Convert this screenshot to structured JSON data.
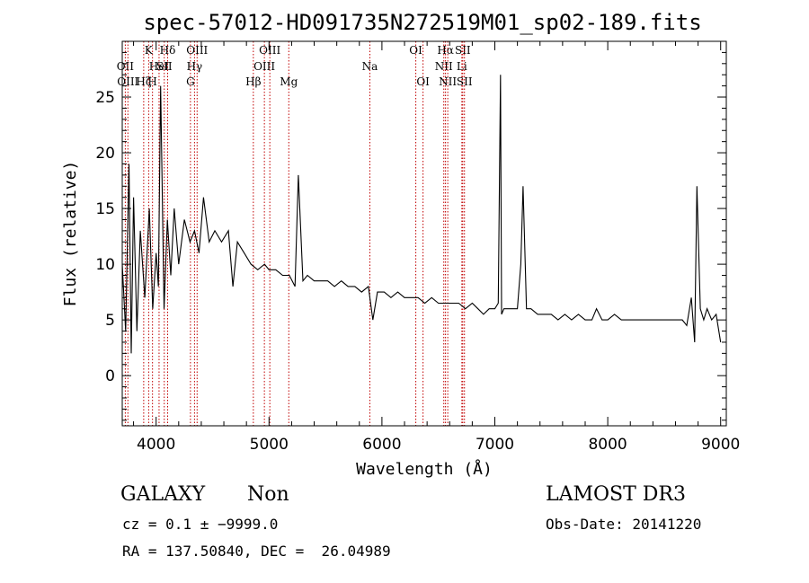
{
  "chart_data": {
    "type": "line",
    "title": "spec-57012-HD091735N272519M01_sp02-189.fits",
    "xlabel": "Wavelength (Å)",
    "ylabel": "Flux (relative)",
    "xlim": [
      3700,
      9050
    ],
    "ylim": [
      -4.5,
      30
    ],
    "xticks": [
      4000,
      5000,
      6000,
      7000,
      8000,
      9000
    ],
    "yticks": [
      0,
      5,
      10,
      15,
      20,
      25
    ],
    "grid": false,
    "series": [
      {
        "name": "flux",
        "x": [
          3700,
          3730,
          3760,
          3780,
          3800,
          3830,
          3860,
          3900,
          3940,
          3970,
          4000,
          4020,
          4040,
          4070,
          4100,
          4130,
          4160,
          4200,
          4250,
          4300,
          4340,
          4380,
          4420,
          4470,
          4520,
          4580,
          4640,
          4680,
          4720,
          4780,
          4840,
          4900,
          4960,
          5000,
          5060,
          5120,
          5180,
          5230,
          5260,
          5300,
          5340,
          5400,
          5460,
          5520,
          5580,
          5640,
          5700,
          5760,
          5820,
          5880,
          5920,
          5960,
          6020,
          6080,
          6140,
          6200,
          6260,
          6320,
          6380,
          6440,
          6500,
          6560,
          6620,
          6680,
          6740,
          6800,
          6850,
          6900,
          6950,
          7000,
          7030,
          7050,
          7060,
          7080,
          7100,
          7150,
          7200,
          7230,
          7250,
          7280,
          7320,
          7380,
          7440,
          7500,
          7560,
          7620,
          7680,
          7740,
          7800,
          7860,
          7900,
          7950,
          8000,
          8060,
          8120,
          8180,
          8240,
          8300,
          8360,
          8420,
          8480,
          8540,
          8600,
          8660,
          8700,
          8740,
          8770,
          8790,
          8820,
          8850,
          8880,
          8920,
          8960,
          9000
        ],
        "y": [
          10,
          4,
          19,
          2,
          16,
          4,
          13,
          7,
          15,
          6,
          11,
          8,
          26,
          6,
          14,
          9,
          15,
          10,
          14,
          12,
          13,
          11,
          16,
          12,
          13,
          12,
          13,
          8,
          12,
          11,
          10,
          9.5,
          10,
          9.5,
          9.5,
          9,
          9,
          8,
          18,
          8.5,
          9,
          8.5,
          8.5,
          8.5,
          8,
          8.5,
          8,
          8,
          7.5,
          8,
          5,
          7.5,
          7.5,
          7,
          7.5,
          7,
          7,
          7,
          6.5,
          7,
          6.5,
          6.5,
          6.5,
          6.5,
          6,
          6.5,
          6,
          5.5,
          6,
          6,
          6.5,
          27,
          5.5,
          6,
          6,
          6,
          6,
          10,
          17,
          6,
          6,
          5.5,
          5.5,
          5.5,
          5,
          5.5,
          5,
          5.5,
          5,
          5,
          6,
          5,
          5,
          5.5,
          5,
          5,
          5,
          5,
          5,
          5,
          5,
          5,
          5,
          5,
          4.5,
          7,
          3,
          17,
          6,
          5,
          6,
          5,
          5.5,
          3
        ]
      }
    ],
    "lines": [
      {
        "wl": 3727,
        "label": "OII",
        "row": 1
      },
      {
        "wl": 3750,
        "label": "OIII",
        "row": 2
      },
      {
        "wl": 3890,
        "label": "Hζ",
        "row": 2
      },
      {
        "wl": 3934,
        "label": "K",
        "row": 0
      },
      {
        "wl": 3968,
        "label": "H",
        "row": 2
      },
      {
        "wl": 4026,
        "label": "HeI",
        "row": 1
      },
      {
        "wl": 4072,
        "label": "SII",
        "row": 1
      },
      {
        "wl": 4102,
        "label": "Hδ",
        "row": 0
      },
      {
        "wl": 4304,
        "label": "G",
        "row": 2
      },
      {
        "wl": 4340,
        "label": "Hγ",
        "row": 1
      },
      {
        "wl": 4363,
        "label": "OIII",
        "row": 0
      },
      {
        "wl": 4861,
        "label": "Hβ",
        "row": 2
      },
      {
        "wl": 4959,
        "label": "OIII",
        "row": 1
      },
      {
        "wl": 5007,
        "label": "OIII",
        "row": 0
      },
      {
        "wl": 5175,
        "label": "Mg",
        "row": 2
      },
      {
        "wl": 5893,
        "label": "Na",
        "row": 1
      },
      {
        "wl": 6300,
        "label": "OI",
        "row": 0
      },
      {
        "wl": 6364,
        "label": "OI",
        "row": 2
      },
      {
        "wl": 6548,
        "label": "NII",
        "row": 1
      },
      {
        "wl": 6563,
        "label": "Hα",
        "row": 0
      },
      {
        "wl": 6583,
        "label": "NII",
        "row": 2
      },
      {
        "wl": 6708,
        "label": "Li",
        "row": 1
      },
      {
        "wl": 6716,
        "label": "SII",
        "row": 0
      },
      {
        "wl": 6731,
        "label": "SII",
        "row": 2
      }
    ]
  },
  "info": {
    "class": "GALAXY",
    "subclass": "Non",
    "survey": "LAMOST DR3",
    "cz": "cz = 0.1 ± −9999.0",
    "obs_date": "Obs-Date: 20141220",
    "radec": "RA = 137.50840, DEC =  26.04989"
  },
  "colors": {
    "spectrum": "#000000",
    "line_marker": "#c00000",
    "axis": "#000000"
  }
}
